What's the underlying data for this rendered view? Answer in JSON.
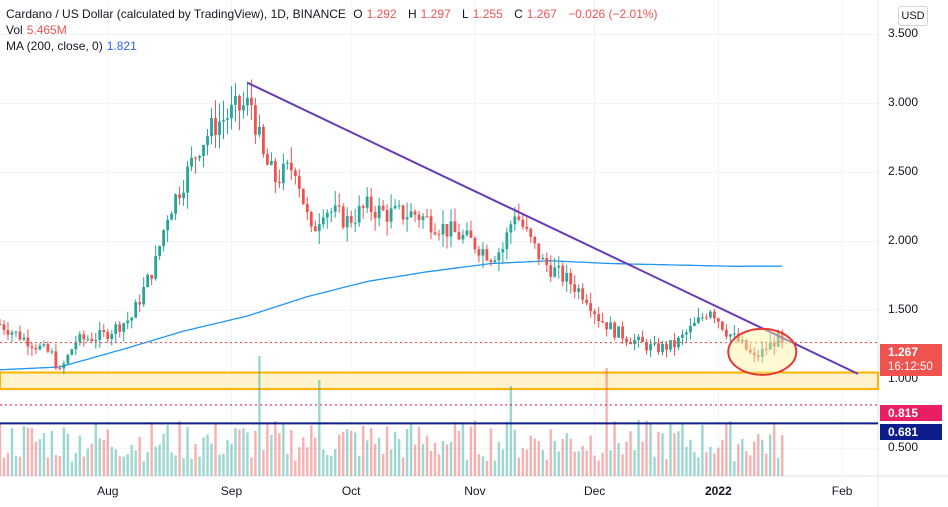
{
  "header": {
    "title": "Cardano / US Dollar (calculated by TradingView), 1D, BINANCE",
    "ohlc": {
      "o_label": "O",
      "o": "1.292",
      "h_label": "H",
      "h": "1.297",
      "l_label": "L",
      "l": "1.255",
      "c_label": "C",
      "c": "1.267",
      "change": "−0.026 (−2.01%)"
    },
    "vol_label": "Vol",
    "vol": "5.465M",
    "ma_label": "MA (200, close, 0)",
    "ma": "1.821"
  },
  "currency_button": "USD",
  "price_axis": {
    "labels": [
      "3.500",
      "3.000",
      "2.500",
      "2.000",
      "1.500",
      "1.000",
      "0.500"
    ]
  },
  "time_axis": {
    "labels": [
      "Aug",
      "Sep",
      "Oct",
      "Nov",
      "Dec",
      "2022",
      "Feb"
    ],
    "bold": "2022"
  },
  "tags": {
    "last_price": "1.267",
    "countdown": "16:12:50",
    "support1": "0.815",
    "support2": "0.681"
  },
  "colors": {
    "up": "#26a69a",
    "down": "#ef5350",
    "ma": "#2196f3",
    "trendline": "#673ab7",
    "zone_fill": "#fff2cc",
    "zone_edge": "#ffb300",
    "dotted_red": "#e91e63",
    "navy": "#0d1e8c",
    "circle": "#e53935",
    "circle_fill": "#fff59d"
  },
  "chart_data": {
    "type": "candlestick",
    "symbol": "ADAUSD",
    "timeframe": "1D",
    "ylim": [
      0.3,
      3.75
    ],
    "xlim": [
      "2021-07-05",
      "2022-02-10"
    ],
    "grid": true,
    "legend": "top-left",
    "close_anchors": [
      [
        "2021-07-05",
        1.4
      ],
      [
        "2021-07-12",
        1.28
      ],
      [
        "2021-07-18",
        1.18
      ],
      [
        "2021-07-20",
        1.05
      ],
      [
        "2021-07-24",
        1.28
      ],
      [
        "2021-07-31",
        1.32
      ],
      [
        "2021-08-07",
        1.45
      ],
      [
        "2021-08-13",
        1.85
      ],
      [
        "2021-08-16",
        2.2
      ],
      [
        "2021-08-21",
        2.5
      ],
      [
        "2021-08-24",
        2.7
      ],
      [
        "2021-08-28",
        2.85
      ],
      [
        "2021-09-02",
        2.95
      ],
      [
        "2021-09-06",
        3.0
      ],
      [
        "2021-09-09",
        2.6
      ],
      [
        "2021-09-12",
        2.45
      ],
      [
        "2021-09-17",
        2.55
      ],
      [
        "2021-09-21",
        2.05
      ],
      [
        "2021-09-24",
        2.25
      ],
      [
        "2021-09-30",
        2.15
      ],
      [
        "2021-10-05",
        2.25
      ],
      [
        "2021-10-10",
        2.2
      ],
      [
        "2021-10-17",
        2.2
      ],
      [
        "2021-10-24",
        2.1
      ],
      [
        "2021-10-31",
        2.0
      ],
      [
        "2021-11-05",
        1.9
      ],
      [
        "2021-11-08",
        1.95
      ],
      [
        "2021-11-11",
        2.22
      ],
      [
        "2021-11-14",
        2.05
      ],
      [
        "2021-11-18",
        1.85
      ],
      [
        "2021-11-25",
        1.7
      ],
      [
        "2021-11-29",
        1.6
      ],
      [
        "2021-12-02",
        1.45
      ],
      [
        "2021-12-06",
        1.35
      ],
      [
        "2021-12-11",
        1.28
      ],
      [
        "2021-12-16",
        1.22
      ],
      [
        "2021-12-21",
        1.25
      ],
      [
        "2021-12-27",
        1.42
      ],
      [
        "2021-12-30",
        1.52
      ],
      [
        "2022-01-03",
        1.35
      ],
      [
        "2022-01-07",
        1.25
      ],
      [
        "2022-01-10",
        1.15
      ],
      [
        "2022-01-12",
        1.2
      ],
      [
        "2022-01-16",
        1.3
      ],
      [
        "2022-01-17",
        1.267
      ]
    ],
    "ma200_anchors": [
      [
        "2021-07-05",
        1.07
      ],
      [
        "2021-07-20",
        1.09
      ],
      [
        "2021-08-05",
        1.22
      ],
      [
        "2021-08-20",
        1.35
      ],
      [
        "2021-09-05",
        1.46
      ],
      [
        "2021-09-20",
        1.6
      ],
      [
        "2021-10-05",
        1.71
      ],
      [
        "2021-10-20",
        1.78
      ],
      [
        "2021-11-05",
        1.84
      ],
      [
        "2021-11-20",
        1.86
      ],
      [
        "2021-12-05",
        1.84
      ],
      [
        "2021-12-20",
        1.83
      ],
      [
        "2022-01-05",
        1.82
      ],
      [
        "2022-01-17",
        1.821
      ]
    ],
    "trendline": [
      [
        "2021-09-05",
        3.15
      ],
      [
        "2022-02-05",
        1.04
      ]
    ],
    "support_zone": [
      0.93,
      1.05
    ],
    "levels": [
      {
        "value": 1.267,
        "style": "dotted"
      },
      {
        "value": 0.815,
        "style": "dotted"
      },
      {
        "value": 0.681,
        "style": "solid"
      }
    ],
    "highlight_ellipse": {
      "center": [
        "2022-01-12",
        1.2
      ]
    },
    "volume_spikes": [
      [
        "2021-09-08",
        1.0
      ],
      [
        "2021-12-04",
        0.9
      ],
      [
        "2021-09-23",
        0.8
      ],
      [
        "2021-11-10",
        0.75
      ]
    ]
  }
}
